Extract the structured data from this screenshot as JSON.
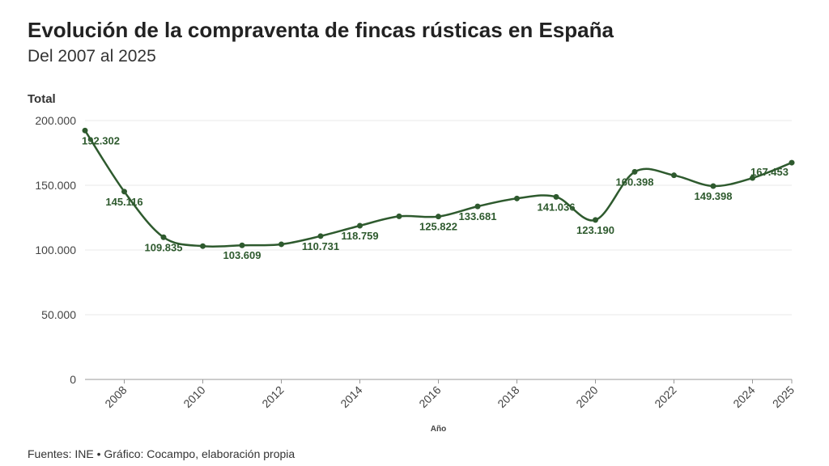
{
  "chart_data": {
    "type": "line",
    "title": "Evolución de la compraventa de fincas rústicas en España",
    "subtitle": "Del 2007 al 2025",
    "ylabel": "Total",
    "xlabel": "Año",
    "source": "Fuentes: INE • Gráfico: Cocampo, elaboración propia",
    "ylim": [
      0,
      200000
    ],
    "yticks": [
      "0",
      "50.000",
      "100.000",
      "150.000",
      "200.000"
    ],
    "xticks": [
      "2008",
      "2010",
      "2012",
      "2014",
      "2016",
      "2018",
      "2020",
      "2022",
      "2024",
      "2025"
    ],
    "grid": true,
    "line_color": "#2e5a2e",
    "x": [
      2007,
      2008,
      2009,
      2010,
      2011,
      2012,
      2013,
      2014,
      2015,
      2016,
      2017,
      2018,
      2019,
      2020,
      2021,
      2022,
      2023,
      2024,
      2025
    ],
    "values": [
      192302,
      145116,
      109835,
      103000,
      103609,
      104400,
      110731,
      118759,
      126000,
      125822,
      133681,
      139800,
      141036,
      123190,
      160398,
      157700,
      149398,
      155600,
      167453
    ],
    "data_labels": {
      "2007": "192.302",
      "2008": "145.116",
      "2009": "109.835",
      "2011": "103.609",
      "2013": "110.731",
      "2014": "118.759",
      "2016": "125.822",
      "2017": "133.681",
      "2019": "141.036",
      "2020": "123.190",
      "2021": "160.398",
      "2023": "149.398",
      "2025": "167.453"
    }
  }
}
